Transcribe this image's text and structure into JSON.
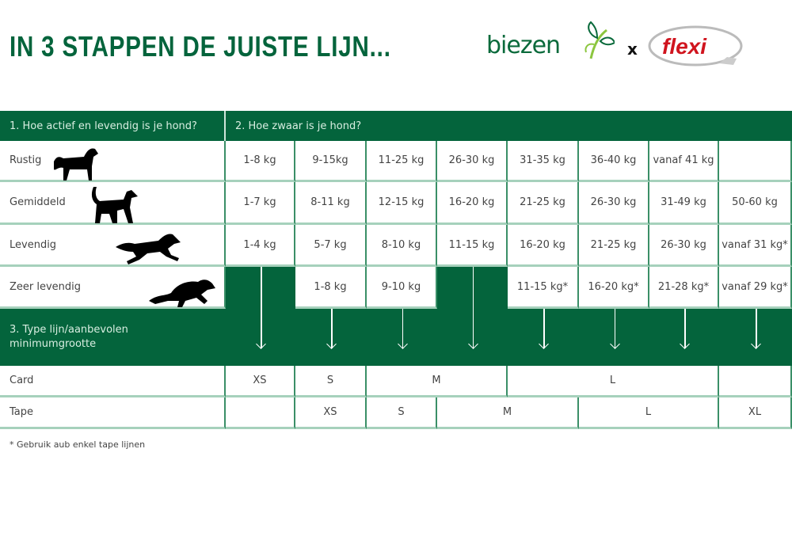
{
  "title": "In 3 stappen de juiste lijn...",
  "logos": {
    "biezen": "biezen",
    "separator": "x",
    "flexi": "flexi"
  },
  "colors": {
    "brand_green": "#04643c",
    "grid_line": "#3a8f67",
    "flexi_red": "#d0141e"
  },
  "headers": {
    "activity": "1. Hoe actief en levendig is je hond?",
    "weight": "2. Hoe zwaar is je hond?",
    "type": "3. Type lijn/aanbevolen minimumgrootte"
  },
  "rows": [
    {
      "label": "Rustig",
      "icon": "standing-dog-icon",
      "cells": [
        "1-8 kg",
        "9-15kg",
        "11-25 kg",
        "26-30 kg",
        "31-35 kg",
        "36-40 kg",
        "vanaf 41 kg",
        ""
      ]
    },
    {
      "label": "Gemiddeld",
      "icon": "walking-dog-icon",
      "cells": [
        "1-7 kg",
        "8-11 kg",
        "12-15 kg",
        "16-20 kg",
        "21-25 kg",
        "26-30 kg",
        "31-49 kg",
        "50-60 kg"
      ]
    },
    {
      "label": "Levendig",
      "icon": "running-dog-icon",
      "cells": [
        "1-4 kg",
        "5-7 kg",
        "8-10 kg",
        "11-15 kg",
        "16-20 kg",
        "21-25 kg",
        "26-30 kg",
        "vanaf 31 kg*"
      ]
    },
    {
      "label": "Zeer levendig",
      "icon": "sprinting-dog-icon",
      "cells": [
        null,
        "1-8 kg",
        "9-10 kg",
        null,
        "11-15 kg*",
        "16-20 kg*",
        "21-28 kg*",
        "vanaf 29 kg*"
      ]
    }
  ],
  "card": {
    "label": "Card",
    "sizes": [
      "XS",
      "S",
      "M",
      "L",
      ""
    ]
  },
  "tape": {
    "label": "Tape",
    "sizes": [
      "",
      "XS",
      "S",
      "M",
      "L",
      "XL"
    ]
  },
  "footnote": "* Gebruik aub enkel tape lijnen"
}
